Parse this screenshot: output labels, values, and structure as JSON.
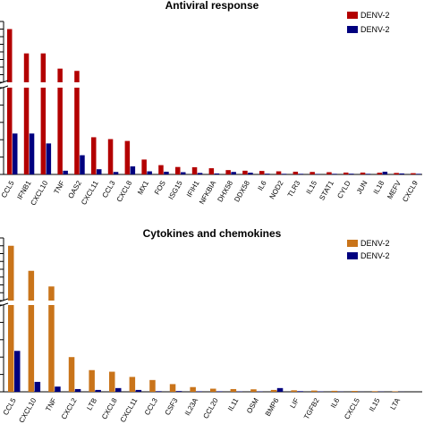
{
  "chart_data": [
    {
      "type": "bar",
      "title": "Antiviral response",
      "xlabel": "",
      "ylabel": "",
      "broken_axis": true,
      "grid": false,
      "legend_position": "top-right",
      "colors": [
        "#b30000",
        "#00007f"
      ],
      "categories": [
        "CCL5",
        "IFNB1",
        "CXCL10",
        "TNF",
        "OAS2",
        "CXCL11",
        "CCL3",
        "CXCL8",
        "MX1",
        "FOS",
        "ISG15",
        "IFIH1",
        "NFKBIA",
        "DHX58",
        "DDX58",
        "IL6",
        "NOD2",
        "TLR3",
        "IL15",
        "STAT1",
        "CYLD",
        "JUN",
        "IL18",
        "MEFV",
        "CXCL9"
      ],
      "series": [
        {
          "name": "DENV-2",
          "values": [
            1400,
            1080,
            1080,
            880,
            850,
            300,
            285,
            270,
            120,
            75,
            60,
            58,
            50,
            35,
            30,
            28,
            25,
            22,
            20,
            18,
            15,
            15,
            14,
            12,
            10
          ]
        },
        {
          "name": "DENV-2",
          "values": [
            330,
            330,
            250,
            30,
            155,
            42,
            20,
            65,
            25,
            22,
            18,
            12,
            8,
            20,
            14,
            6,
            5,
            5,
            4,
            5,
            6,
            5,
            22,
            8,
            5
          ]
        }
      ]
    },
    {
      "type": "bar",
      "title": "Cytokines and chemokines",
      "xlabel": "",
      "ylabel": "",
      "broken_axis": true,
      "grid": false,
      "legend_position": "top-right",
      "colors": [
        "#c9741a",
        "#00007f"
      ],
      "categories": [
        "CCL5",
        "CXCL10",
        "TNF",
        "CXCL2",
        "LTB",
        "CXCL8",
        "CXCL11",
        "CCL3",
        "CSF3",
        "IL23A",
        "CCL20",
        "IL11",
        "OSM",
        "BMP6",
        "LIF",
        "TGFB2",
        "IL6",
        "CXCL5",
        "IL15",
        "LTA"
      ],
      "series": [
        {
          "name": "DENV-2",
          "values": [
            1400,
            1080,
            880,
            280,
            175,
            162,
            120,
            95,
            62,
            38,
            25,
            22,
            20,
            15,
            12,
            10,
            8,
            7,
            5,
            4
          ]
        },
        {
          "name": "DENV-2",
          "values": [
            330,
            80,
            42,
            22,
            15,
            30,
            15,
            5,
            6,
            4,
            4,
            3,
            3,
            30,
            5,
            3,
            2,
            1,
            2,
            1
          ]
        }
      ]
    }
  ]
}
